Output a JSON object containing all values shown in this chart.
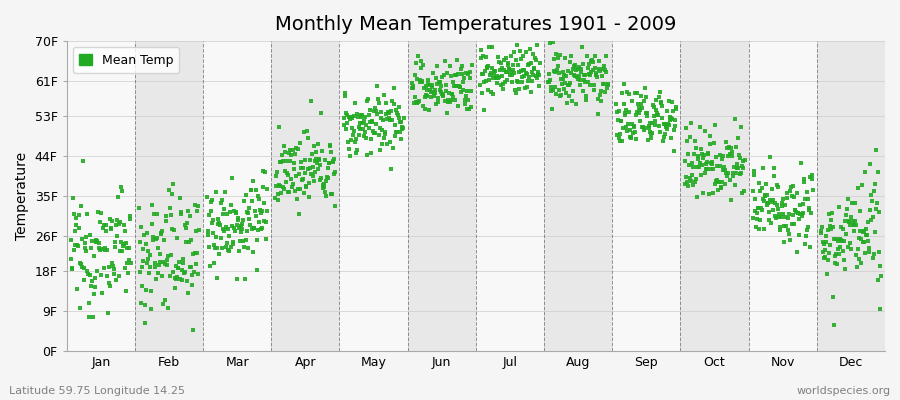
{
  "title": "Monthly Mean Temperatures 1901 - 2009",
  "ylabel": "Temperature",
  "xlabel_bottom_left": "Latitude 59.75 Longitude 14.25",
  "xlabel_bottom_right": "worldspecies.org",
  "legend_label": "Mean Temp",
  "yticks_labels": [
    "0F",
    "9F",
    "18F",
    "26F",
    "35F",
    "44F",
    "53F",
    "61F",
    "70F"
  ],
  "yticks_values": [
    0,
    9,
    18,
    26,
    35,
    44,
    53,
    61,
    70
  ],
  "month_labels": [
    "Jan",
    "Feb",
    "Mar",
    "Apr",
    "May",
    "Jun",
    "Jul",
    "Aug",
    "Sep",
    "Oct",
    "Nov",
    "Dec"
  ],
  "dot_color": "#22aa22",
  "background_color": "#f5f5f5",
  "band_color_light": "#e8e8e8",
  "band_color_white": "#f8f8f8",
  "grid_color": "#666666",
  "title_fontsize": 14,
  "axis_label_fontsize": 10,
  "tick_fontsize": 9,
  "dot_size": 5,
  "num_years": 109,
  "start_year": 1901,
  "means_c": [
    -5.5,
    -5.8,
    -2.0,
    4.5,
    10.5,
    15.0,
    17.0,
    16.2,
    11.2,
    5.5,
    0.2,
    -3.8
  ],
  "stds_c": [
    3.5,
    3.8,
    2.8,
    2.2,
    2.0,
    1.8,
    1.6,
    1.8,
    2.0,
    2.2,
    2.5,
    3.2
  ],
  "trend_c_per_year": [
    0.008,
    0.008,
    0.008,
    0.008,
    0.006,
    0.005,
    0.005,
    0.005,
    0.006,
    0.006,
    0.007,
    0.008
  ]
}
